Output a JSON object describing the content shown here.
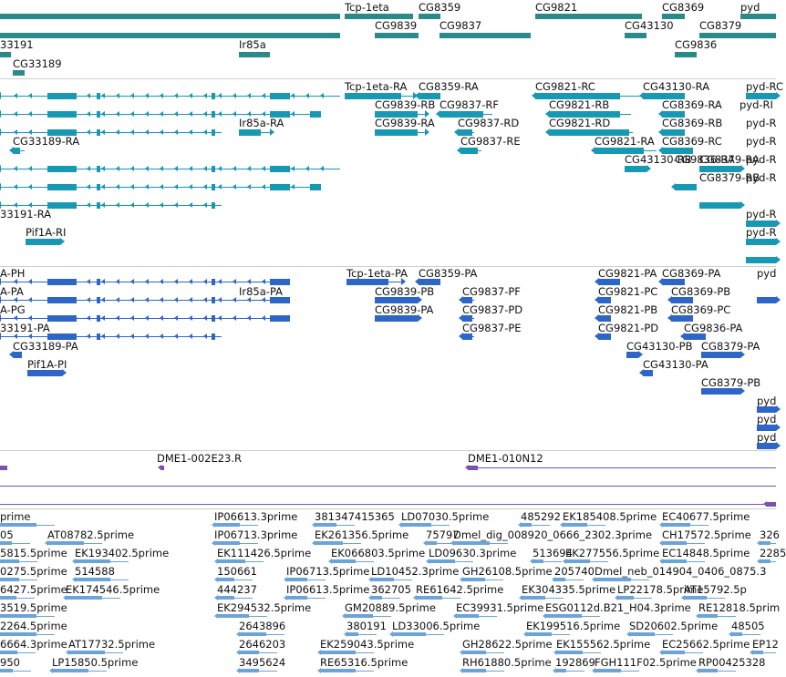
{
  "colors": {
    "gene": "#2a8a8a",
    "transcript": "#1798b3",
    "protein": "#2e66c8",
    "clone": "#7a52b0",
    "est": "#6ba4d8",
    "divider": "#cfcfcf"
  },
  "tracks": {
    "genes": {
      "labels": [
        "Tcp-1eta",
        "CG8359",
        "CG9821",
        "CG8369",
        "pyd",
        "CG9839",
        "CG9837",
        "CG43130",
        "CG8379",
        "33191",
        "Ir85a",
        "CG9836",
        "CG33189"
      ]
    },
    "transcripts": {
      "labels": [
        "Tcp-1eta-RA",
        "CG8359-RA",
        "CG9821-RC",
        "CG43130-RA",
        "pyd-RC",
        "CG9839-RB",
        "CG9837-RF",
        "CG9821-RB",
        "CG8369-RA",
        "pyd-RI",
        "Ir85a-RA",
        "CG9839-RA",
        "CG9837-RD",
        "CG9821-RD",
        "CG8369-RB",
        "pyd-R",
        "CG33189-RA",
        "CG9837-RE",
        "CG9821-RA",
        "CG8369-RC",
        "pyd-R",
        "CG43130-RB",
        "CG8379-RA",
        "CG9836-RA",
        "pyd-R",
        "CG8379-RB",
        "33191-RA",
        "pyd-R",
        "Pif1A-RI",
        "pyd-R",
        "pyd-R"
      ]
    },
    "proteins": {
      "labels": [
        "Tcp-1eta-PA",
        "CG8359-PA",
        "CG9821-PA",
        "CG8369-PA",
        "A-PH",
        "A-PA",
        "CG9839-PB",
        "CG9837-PF",
        "Ir85a-PA",
        "CG9821-PC",
        "CG8369-PB",
        "A-PG",
        "CG9839-PA",
        "CG9837-PD",
        "CG9821-PB",
        "CG8369-PC",
        "33191-PA",
        "CG9837-PE",
        "CG9821-PD",
        "CG9836-PA",
        "CG33189-PA",
        "CG43130-PB",
        "CG8379-PA",
        "Pif1A-PI",
        "CG43130-PA",
        "CG8379-PB",
        "pyd",
        "pyd",
        "pyd",
        "pyd"
      ]
    },
    "clones": {
      "labels": [
        "DME1-002E23.R",
        "DME1-010N12"
      ]
    },
    "ests": {
      "labels": [
        "prime",
        "IP06613.3prime",
        "381347415365",
        "LD07030.5prime",
        "485292",
        "EK185408.5prime",
        "EC40677.5prime",
        "05",
        "AT08782.5prime",
        "IP06713.3prime",
        "EK261356.5prime",
        "75797",
        "Dmel_dig_008920_0666_2302.3prime",
        "CH17572.5prime",
        "326",
        "5815.5prime",
        "EK193402.5prime",
        "EK111426.5prime",
        "EK066803.5prime",
        "LD09630.3prime",
        "513694",
        "EK277556.5prime",
        "EC14848.5prime",
        "2285",
        "0275.5prime",
        "514588",
        "150661",
        "IP06713.5prime",
        "LD10452.3prime",
        "GH26108.5prime",
        "205740",
        "Dmel_neb_014904_0406_0875.3",
        "6427.5prime",
        "EK174546.5prime",
        "444237",
        "IP06613.5prime",
        "362705",
        "RE61642.5prime",
        "EK304335.5prime",
        "LP22178.5prime",
        "AT15792.5p",
        "3519.5prime",
        "EK294532.5prime",
        "GM20889.5prime",
        "EC39931.5prime",
        "ESG0112d.B21_H04.3prime",
        "RE12818.5prim",
        "2264.5prime",
        "2643896",
        "380191",
        "LD33006.5prime",
        "EK199516.5prime",
        "SD20602.5prime",
        "48505",
        "6664.3prime",
        "AT17732.5prime",
        "2646203",
        "EK259043.5prime",
        "GH28622.5prime",
        "EK155562.5prime",
        "EC25662.5prime",
        "EP12",
        "950",
        "LP15850.5prime",
        "3495624",
        "RE65316.5prime",
        "RH61880.5prime",
        "192869",
        "FGH111F02.5prime",
        "RP00425328"
      ]
    }
  }
}
